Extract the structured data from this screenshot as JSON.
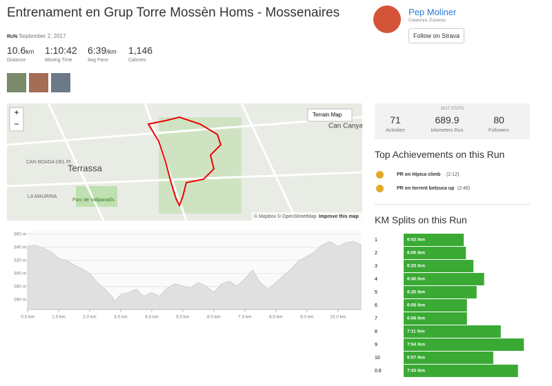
{
  "header": {
    "title": "Entrenament en Grup Torre Mossèn Homs - Mossenaires",
    "type": "RUN",
    "date": "September 2, 2017"
  },
  "stats": [
    {
      "value": "10.6",
      "unit": "km",
      "label": "Distance"
    },
    {
      "value": "1:10:42",
      "label": "Moving Time"
    },
    {
      "value": "6:39",
      "unit": "/km",
      "label": "Avg Pace"
    },
    {
      "value": "1,146",
      "label": "Calories"
    }
  ],
  "athlete": {
    "name": "Pep Moliner",
    "location": "Catalunya, Espanya",
    "follow": "Follow on Strava"
  },
  "map": {
    "zoom_in": "+",
    "zoom_out": "−",
    "layer": "Terrain Map",
    "places": [
      "Terrassa",
      "Can Canyameres",
      "Parc de Vallparadís",
      "LA MAURINA",
      "CAN BOADA DEL PI"
    ],
    "credits": "© Mapbox © OpenStreetMap",
    "improve": "Improve this map"
  },
  "year_stats": {
    "title": "2017 STATS",
    "items": [
      {
        "value": "71",
        "label": "Activities"
      },
      {
        "value": "689.9",
        "label": "kilometers Run"
      },
      {
        "value": "80",
        "label": "Followers"
      }
    ]
  },
  "achievements": {
    "title": "Top Achievements on this Run",
    "items": [
      {
        "text": "PR on Hípica climb",
        "time": "(2:12)"
      },
      {
        "text": "PR on torrent betzuca up",
        "time": "(2:48)"
      }
    ]
  },
  "chart_data": [
    {
      "type": "area",
      "color": "#e0e0e0",
      "x": [
        0,
        0.25,
        0.5,
        0.75,
        1,
        1.25,
        1.5,
        1.75,
        2,
        2.25,
        2.5,
        2.75,
        2.8,
        3,
        3.25,
        3.5,
        3.75,
        4,
        4.25,
        4.5,
        4.75,
        5,
        5.25,
        5.5,
        5.75,
        6,
        6.25,
        6.5,
        6.75,
        7,
        7.25,
        7.5,
        7.75,
        8,
        8.25,
        8.5,
        8.75,
        9,
        9.25,
        9.5,
        9.75,
        10,
        10.25,
        10.5,
        10.74
      ],
      "values": [
        342,
        343,
        339,
        333,
        323,
        320,
        313,
        307,
        300,
        286,
        276,
        263,
        256,
        268,
        271,
        276,
        265,
        271,
        265,
        278,
        284,
        281,
        278,
        286,
        281,
        271,
        284,
        288,
        281,
        292,
        305,
        286,
        276,
        286,
        297,
        307,
        320,
        326,
        333,
        344,
        349,
        341,
        347,
        349,
        344
      ],
      "xlim": [
        0,
        10.74
      ],
      "ylim": [
        245,
        365
      ],
      "xticks": [
        {
          "value": 0,
          "label": "0.0 km"
        },
        {
          "value": 1,
          "label": "1.0 km"
        },
        {
          "value": 2,
          "label": "2.0 km"
        },
        {
          "value": 3,
          "label": "3.0 km"
        },
        {
          "value": 4,
          "label": "4.0 km"
        },
        {
          "value": 5,
          "label": "5.0 km"
        },
        {
          "value": 6,
          "label": "6.0 km"
        },
        {
          "value": 7,
          "label": "7.0 km"
        },
        {
          "value": 8,
          "label": "8.0 km"
        },
        {
          "value": 9,
          "label": "9.0 km"
        },
        {
          "value": 10,
          "label": "10.0 km"
        }
      ],
      "yticks": [
        {
          "value": 260,
          "label": "260 m"
        },
        {
          "value": 280,
          "label": "280 m"
        },
        {
          "value": 300,
          "label": "300 m"
        },
        {
          "value": 320,
          "label": "320 m"
        },
        {
          "value": 340,
          "label": "340 m"
        },
        {
          "value": 360,
          "label": "360 m"
        }
      ],
      "grid": true
    },
    {
      "type": "bar",
      "title": "KM Splits on this Run",
      "orientation": "horizontal",
      "color": "#3aaa35",
      "categories": [
        "1",
        "2",
        "3",
        "4",
        "5",
        "6",
        "7",
        "8",
        "9",
        "10",
        "0.6"
      ],
      "values": [
        362,
        366,
        380,
        400,
        386,
        368,
        368,
        431,
        474,
        417,
        463
      ],
      "value_labels": [
        "6:02 /km",
        "6:06 /km",
        "6:20 /km",
        "6:40 /km",
        "6:26 /km",
        "6:08 /km",
        "6:08 /km",
        "7:11 /km",
        "7:54 /km",
        "6:57 /km",
        "7:43 /km"
      ],
      "xlim": [
        250,
        475
      ]
    }
  ]
}
